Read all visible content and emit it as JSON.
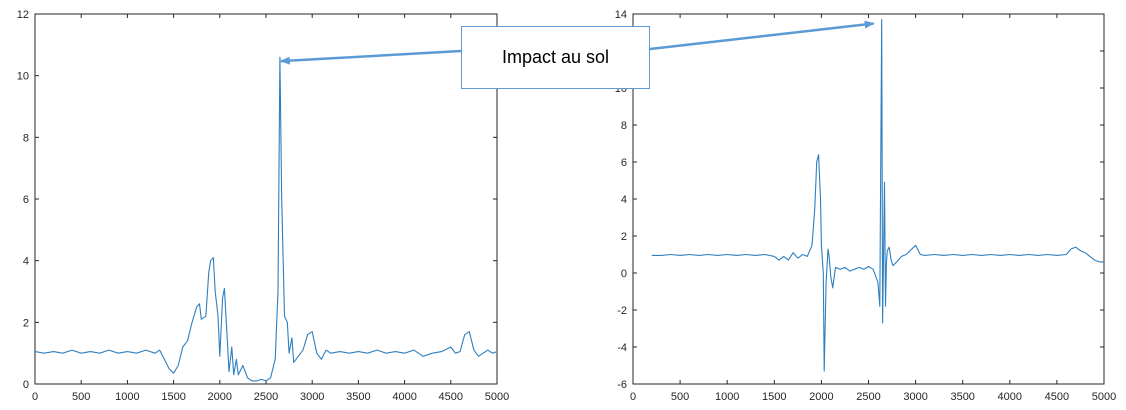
{
  "chart_data": [
    {
      "type": "line",
      "title": "",
      "xlabel": "",
      "ylabel": "",
      "xlim": [
        0,
        5000
      ],
      "ylim": [
        0,
        12
      ],
      "xticks": [
        "0",
        "500",
        "1000",
        "1500",
        "2000",
        "2500",
        "3000",
        "3500",
        "4000",
        "4500",
        "5000"
      ],
      "yticks": [
        "0",
        "2",
        "4",
        "6",
        "8",
        "10",
        "12"
      ],
      "grid": false,
      "color": "#2f7fbf",
      "series": [
        {
          "x": [
            0,
            100,
            200,
            300,
            400,
            500,
            600,
            700,
            800,
            900,
            1000,
            1100,
            1200,
            1300,
            1350,
            1400,
            1450,
            1500,
            1550,
            1600,
            1650,
            1700,
            1750,
            1780,
            1800,
            1850,
            1880,
            1900,
            1930,
            1950,
            1980,
            2000,
            2030,
            2050,
            2080,
            2100,
            2130,
            2150,
            2180,
            2200,
            2250,
            2300,
            2350,
            2400,
            2450,
            2500,
            2550,
            2600,
            2630,
            2650,
            2670,
            2700,
            2730,
            2750,
            2780,
            2800,
            2850,
            2900,
            2950,
            3000,
            3050,
            3100,
            3150,
            3200,
            3300,
            3400,
            3500,
            3600,
            3700,
            3800,
            3900,
            4000,
            4100,
            4200,
            4300,
            4400,
            4500,
            4550,
            4600,
            4650,
            4700,
            4750,
            4800,
            4850,
            4900,
            4950,
            5000
          ],
          "y": [
            1.05,
            1.0,
            1.05,
            1.0,
            1.1,
            1.0,
            1.05,
            1.0,
            1.1,
            1.0,
            1.05,
            1.0,
            1.1,
            1.0,
            1.1,
            0.8,
            0.5,
            0.35,
            0.6,
            1.2,
            1.4,
            2.0,
            2.5,
            2.6,
            2.1,
            2.2,
            3.6,
            4.0,
            4.1,
            3.0,
            2.2,
            0.9,
            2.8,
            3.1,
            1.5,
            0.4,
            1.2,
            0.3,
            0.8,
            0.3,
            0.6,
            0.2,
            0.1,
            0.1,
            0.15,
            0.1,
            0.2,
            0.8,
            3.0,
            10.6,
            6.0,
            2.2,
            2.0,
            1.0,
            1.5,
            0.7,
            0.9,
            1.1,
            1.6,
            1.7,
            1.0,
            0.8,
            1.1,
            1.0,
            1.05,
            1.0,
            1.05,
            1.0,
            1.1,
            1.0,
            1.05,
            1.0,
            1.1,
            0.9,
            1.0,
            1.05,
            1.2,
            1.0,
            1.05,
            1.6,
            1.7,
            1.1,
            0.9,
            1.0,
            1.1,
            1.0,
            1.05
          ]
        }
      ]
    },
    {
      "type": "line",
      "title": "",
      "xlabel": "",
      "ylabel": "",
      "xlim": [
        0,
        5000
      ],
      "ylim": [
        -6,
        14
      ],
      "xticks": [
        "0",
        "500",
        "1000",
        "1500",
        "2000",
        "2500",
        "3000",
        "3500",
        "4000",
        "4500",
        "5000"
      ],
      "yticks": [
        "-6",
        "-4",
        "-2",
        "0",
        "2",
        "4",
        "6",
        "8",
        "10",
        "12",
        "14"
      ],
      "grid": false,
      "color": "#2f7fbf",
      "series": [
        {
          "x": [
            200,
            300,
            400,
            500,
            600,
            700,
            800,
            900,
            1000,
            1100,
            1200,
            1300,
            1400,
            1500,
            1550,
            1600,
            1650,
            1700,
            1750,
            1800,
            1850,
            1900,
            1930,
            1950,
            1970,
            1990,
            2000,
            2020,
            2030,
            2050,
            2070,
            2080,
            2100,
            2120,
            2150,
            2200,
            2250,
            2300,
            2350,
            2400,
            2450,
            2500,
            2550,
            2600,
            2620,
            2640,
            2650,
            2670,
            2680,
            2690,
            2700,
            2720,
            2740,
            2760,
            2800,
            2850,
            2900,
            3000,
            3050,
            3100,
            3200,
            3300,
            3400,
            3500,
            3600,
            3700,
            3800,
            3900,
            4000,
            4100,
            4200,
            4300,
            4400,
            4500,
            4600,
            4650,
            4700,
            4750,
            4800,
            4850,
            4900,
            4950,
            5000
          ],
          "y": [
            0.95,
            0.95,
            1.0,
            0.95,
            1.0,
            0.95,
            1.0,
            0.95,
            1.0,
            0.95,
            1.0,
            0.95,
            1.0,
            0.9,
            0.7,
            0.9,
            0.7,
            1.1,
            0.8,
            1.0,
            0.9,
            1.5,
            3.5,
            6.0,
            6.4,
            4.0,
            1.5,
            0.0,
            -5.3,
            -0.5,
            1.3,
            1.0,
            -0.2,
            -0.8,
            0.3,
            0.2,
            0.3,
            0.1,
            0.2,
            0.3,
            0.2,
            0.35,
            0.2,
            -0.5,
            -1.8,
            13.7,
            -2.7,
            4.9,
            -1.8,
            0.5,
            1.2,
            1.4,
            0.7,
            0.4,
            0.6,
            0.9,
            1.0,
            1.5,
            1.0,
            0.95,
            1.0,
            0.95,
            1.0,
            0.95,
            1.0,
            0.95,
            1.0,
            0.95,
            1.0,
            0.95,
            1.0,
            0.95,
            1.0,
            0.95,
            1.0,
            1.3,
            1.4,
            1.2,
            1.1,
            0.9,
            0.7,
            0.6,
            0.6
          ]
        }
      ]
    }
  ],
  "annotation": {
    "text": "Impact au sol",
    "color": "#5b9bd5"
  }
}
